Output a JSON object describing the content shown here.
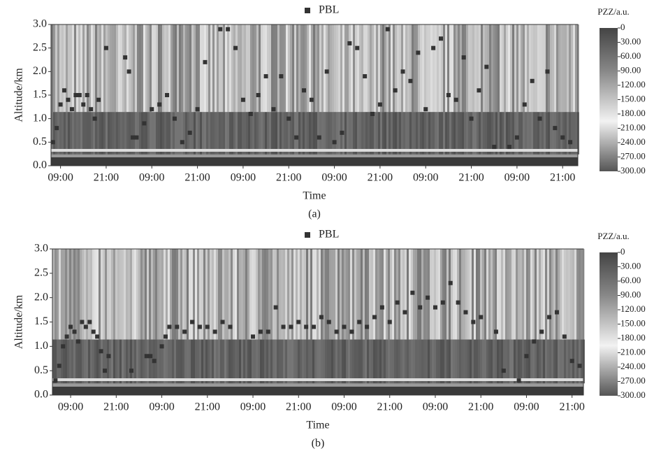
{
  "chart_data": [
    {
      "type": "scatter",
      "caption": "(a)",
      "xlabel": "Time",
      "ylabel": "Altitude/km",
      "series": [
        {
          "name": "PBL",
          "color": "#333333",
          "x": [
            -2,
            -1,
            0,
            1,
            2,
            3,
            4,
            5,
            6,
            7,
            8,
            9,
            10,
            12,
            17,
            18,
            19,
            20,
            22,
            24,
            26,
            28,
            30,
            32,
            34,
            36,
            38,
            42,
            44,
            46,
            48,
            50,
            52,
            54,
            56,
            58,
            60,
            62,
            64,
            66,
            68,
            70,
            72,
            74,
            76,
            78,
            80,
            82,
            84,
            86,
            88,
            90,
            92,
            94,
            96,
            98,
            100,
            102,
            104,
            106,
            108,
            110,
            112,
            114,
            118,
            120,
            122,
            124,
            126,
            128,
            130,
            132,
            134
          ],
          "values": [
            0.5,
            0.8,
            1.3,
            1.6,
            1.4,
            1.2,
            1.5,
            1.5,
            1.3,
            1.5,
            1.2,
            1.0,
            1.4,
            2.5,
            2.3,
            2.0,
            0.6,
            0.6,
            0.9,
            1.2,
            1.3,
            1.5,
            1.0,
            0.5,
            0.7,
            1.2,
            2.2,
            2.9,
            2.9,
            2.5,
            1.4,
            1.1,
            1.5,
            1.9,
            1.2,
            1.9,
            1.0,
            0.6,
            1.6,
            1.4,
            0.6,
            2.0,
            0.5,
            0.7,
            2.6,
            2.5,
            1.9,
            1.1,
            1.3,
            2.9,
            1.6,
            2.0,
            1.8,
            2.4,
            1.2,
            2.5,
            2.7,
            1.5,
            1.4,
            2.3,
            1.0,
            1.6,
            2.1,
            0.4,
            0.4,
            0.6,
            1.3,
            1.8,
            1.0,
            2.0,
            0.8,
            0.6,
            0.5
          ]
        }
      ],
      "xlim": [
        -2.5,
        136
      ],
      "ylim": [
        0,
        3
      ],
      "xticks": [
        {
          "value": 0,
          "label": "09:00"
        },
        {
          "value": 12,
          "label": "21:00"
        },
        {
          "value": 24,
          "label": "09:00"
        },
        {
          "value": 36,
          "label": "21:00"
        },
        {
          "value": 48,
          "label": "09:00"
        },
        {
          "value": 60,
          "label": "21:00"
        },
        {
          "value": 72,
          "label": "09:00"
        },
        {
          "value": 84,
          "label": "21:00"
        },
        {
          "value": 96,
          "label": "09:00"
        },
        {
          "value": 108,
          "label": "21:00"
        },
        {
          "value": 120,
          "label": "09:00"
        },
        {
          "value": 132,
          "label": "21:00"
        }
      ],
      "yticks": [
        {
          "value": 0,
          "label": "0.0"
        },
        0.5,
        {
          "value": 1,
          "label": "1.0"
        },
        1.5,
        {
          "value": 2,
          "label": "2.0"
        },
        2.5,
        {
          "value": 3,
          "label": "3.0"
        }
      ],
      "colorbar_title": "PZZ/a.u.",
      "clim": [
        0,
        300
      ],
      "cticks": [
        0,
        {
          "value": 30,
          "label": "30.00"
        },
        {
          "value": 60,
          "label": "60.00"
        },
        {
          "value": 90,
          "label": "90.00"
        },
        {
          "value": 120,
          "label": "120.00"
        },
        {
          "value": 150,
          "label": "150.00"
        },
        {
          "value": 180,
          "label": "180.00"
        },
        {
          "value": 210,
          "label": "210.00"
        },
        {
          "value": 240,
          "label": "240.00"
        },
        {
          "value": 270,
          "label": "270.00"
        },
        {
          "value": 300,
          "label": "300.00"
        }
      ]
    },
    {
      "type": "scatter",
      "caption": "(b)",
      "xlabel": "Time",
      "ylabel": "Altitude/km",
      "series": [
        {
          "name": "PBL",
          "color": "#333333",
          "x": [
            -4,
            -3,
            -2,
            -1,
            0,
            1,
            2,
            3,
            4,
            5,
            6,
            7,
            8,
            9,
            10,
            16,
            20,
            21,
            22,
            24,
            25,
            26,
            28,
            30,
            32,
            34,
            36,
            38,
            40,
            42,
            48,
            50,
            52,
            54,
            56,
            58,
            60,
            62,
            64,
            66,
            68,
            70,
            72,
            74,
            76,
            78,
            80,
            82,
            84,
            86,
            88,
            90,
            92,
            94,
            96,
            98,
            100,
            102,
            104,
            106,
            108,
            112,
            114,
            118,
            120,
            122,
            124,
            126,
            128,
            130,
            132,
            134
          ],
          "values": [
            0.3,
            0.6,
            1.0,
            1.2,
            1.4,
            1.3,
            1.1,
            1.5,
            1.4,
            1.5,
            1.3,
            1.2,
            0.9,
            0.5,
            0.8,
            0.5,
            0.8,
            0.8,
            0.7,
            1.0,
            1.2,
            1.4,
            1.4,
            1.3,
            1.5,
            1.4,
            1.4,
            1.3,
            1.5,
            1.4,
            1.2,
            1.3,
            1.3,
            1.8,
            1.4,
            1.4,
            1.5,
            1.4,
            1.4,
            1.6,
            1.5,
            1.3,
            1.4,
            1.3,
            1.5,
            1.4,
            1.6,
            1.8,
            1.5,
            1.9,
            1.7,
            2.1,
            1.8,
            2.0,
            1.8,
            1.9,
            2.3,
            1.9,
            1.7,
            1.5,
            1.6,
            1.3,
            0.5,
            0.3,
            0.8,
            1.1,
            1.3,
            1.6,
            1.7,
            1.2,
            0.7,
            0.6
          ]
        }
      ],
      "xlim": [
        -4.8,
        135
      ],
      "ylim": [
        0,
        3
      ],
      "xticks": [
        {
          "value": 0,
          "label": "09:00"
        },
        {
          "value": 12,
          "label": "21:00"
        },
        {
          "value": 24,
          "label": "09:00"
        },
        {
          "value": 36,
          "label": "21:00"
        },
        {
          "value": 48,
          "label": "09:00"
        },
        {
          "value": 60,
          "label": "21:00"
        },
        {
          "value": 72,
          "label": "09:00"
        },
        {
          "value": 84,
          "label": "21:00"
        },
        {
          "value": 96,
          "label": "09:00"
        },
        {
          "value": 108,
          "label": "21:00"
        },
        {
          "value": 120,
          "label": "09:00"
        },
        {
          "value": 132,
          "label": "21:00"
        }
      ],
      "yticks": [
        {
          "value": 0,
          "label": "0.0"
        },
        0.5,
        {
          "value": 1,
          "label": "1.0"
        },
        1.5,
        {
          "value": 2,
          "label": "2.0"
        },
        2.5,
        {
          "value": 3,
          "label": "3.0"
        }
      ],
      "colorbar_title": "PZZ/a.u.",
      "clim": [
        0,
        300
      ],
      "cticks": [
        0,
        {
          "value": 30,
          "label": "30.00"
        },
        {
          "value": 60,
          "label": "60.00"
        },
        {
          "value": 90,
          "label": "90.00"
        },
        {
          "value": 120,
          "label": "120.00"
        },
        {
          "value": 150,
          "label": "150.00"
        },
        {
          "value": 180,
          "label": "180.00"
        },
        {
          "value": 210,
          "label": "210.00"
        },
        {
          "value": 240,
          "label": "240.00"
        },
        {
          "value": 270,
          "label": "270.00"
        },
        {
          "value": 300,
          "label": "300.00"
        }
      ]
    }
  ]
}
